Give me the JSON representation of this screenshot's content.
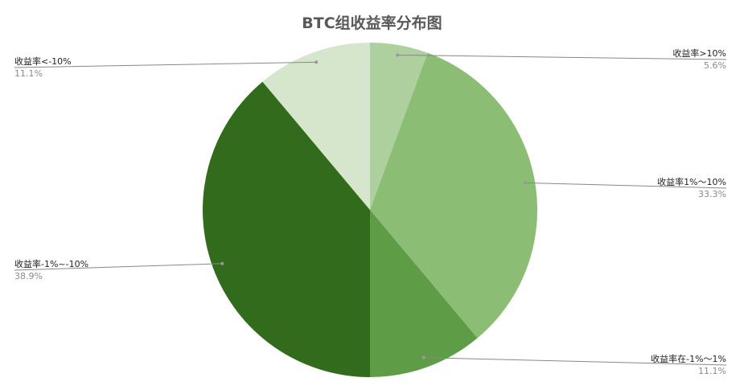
{
  "chart_data": {
    "type": "pie",
    "title": "BTC组收益率分布图",
    "slices": [
      {
        "label": "收益率>10%",
        "value": 5.6,
        "value_label": "5.6%",
        "color": "#aed09e"
      },
      {
        "label": "收益率1%～10%",
        "value": 33.3,
        "value_label": "33.3%",
        "color": "#8bbd74"
      },
      {
        "label": "收益率在-1%～1%",
        "value": 11.1,
        "value_label": "11.1%",
        "color": "#5e9c45"
      },
      {
        "label": "收益率-1%~-10%",
        "value": 38.9,
        "value_label": "38.9%",
        "color": "#336b1d"
      },
      {
        "label": "收益率<-10%",
        "value": 11.1,
        "value_label": "11.1%",
        "color": "#d5e6cc"
      }
    ],
    "start_angle": "12 o'clock",
    "direction": "clockwise",
    "legend": "none",
    "leader_line_color": "#888888"
  }
}
